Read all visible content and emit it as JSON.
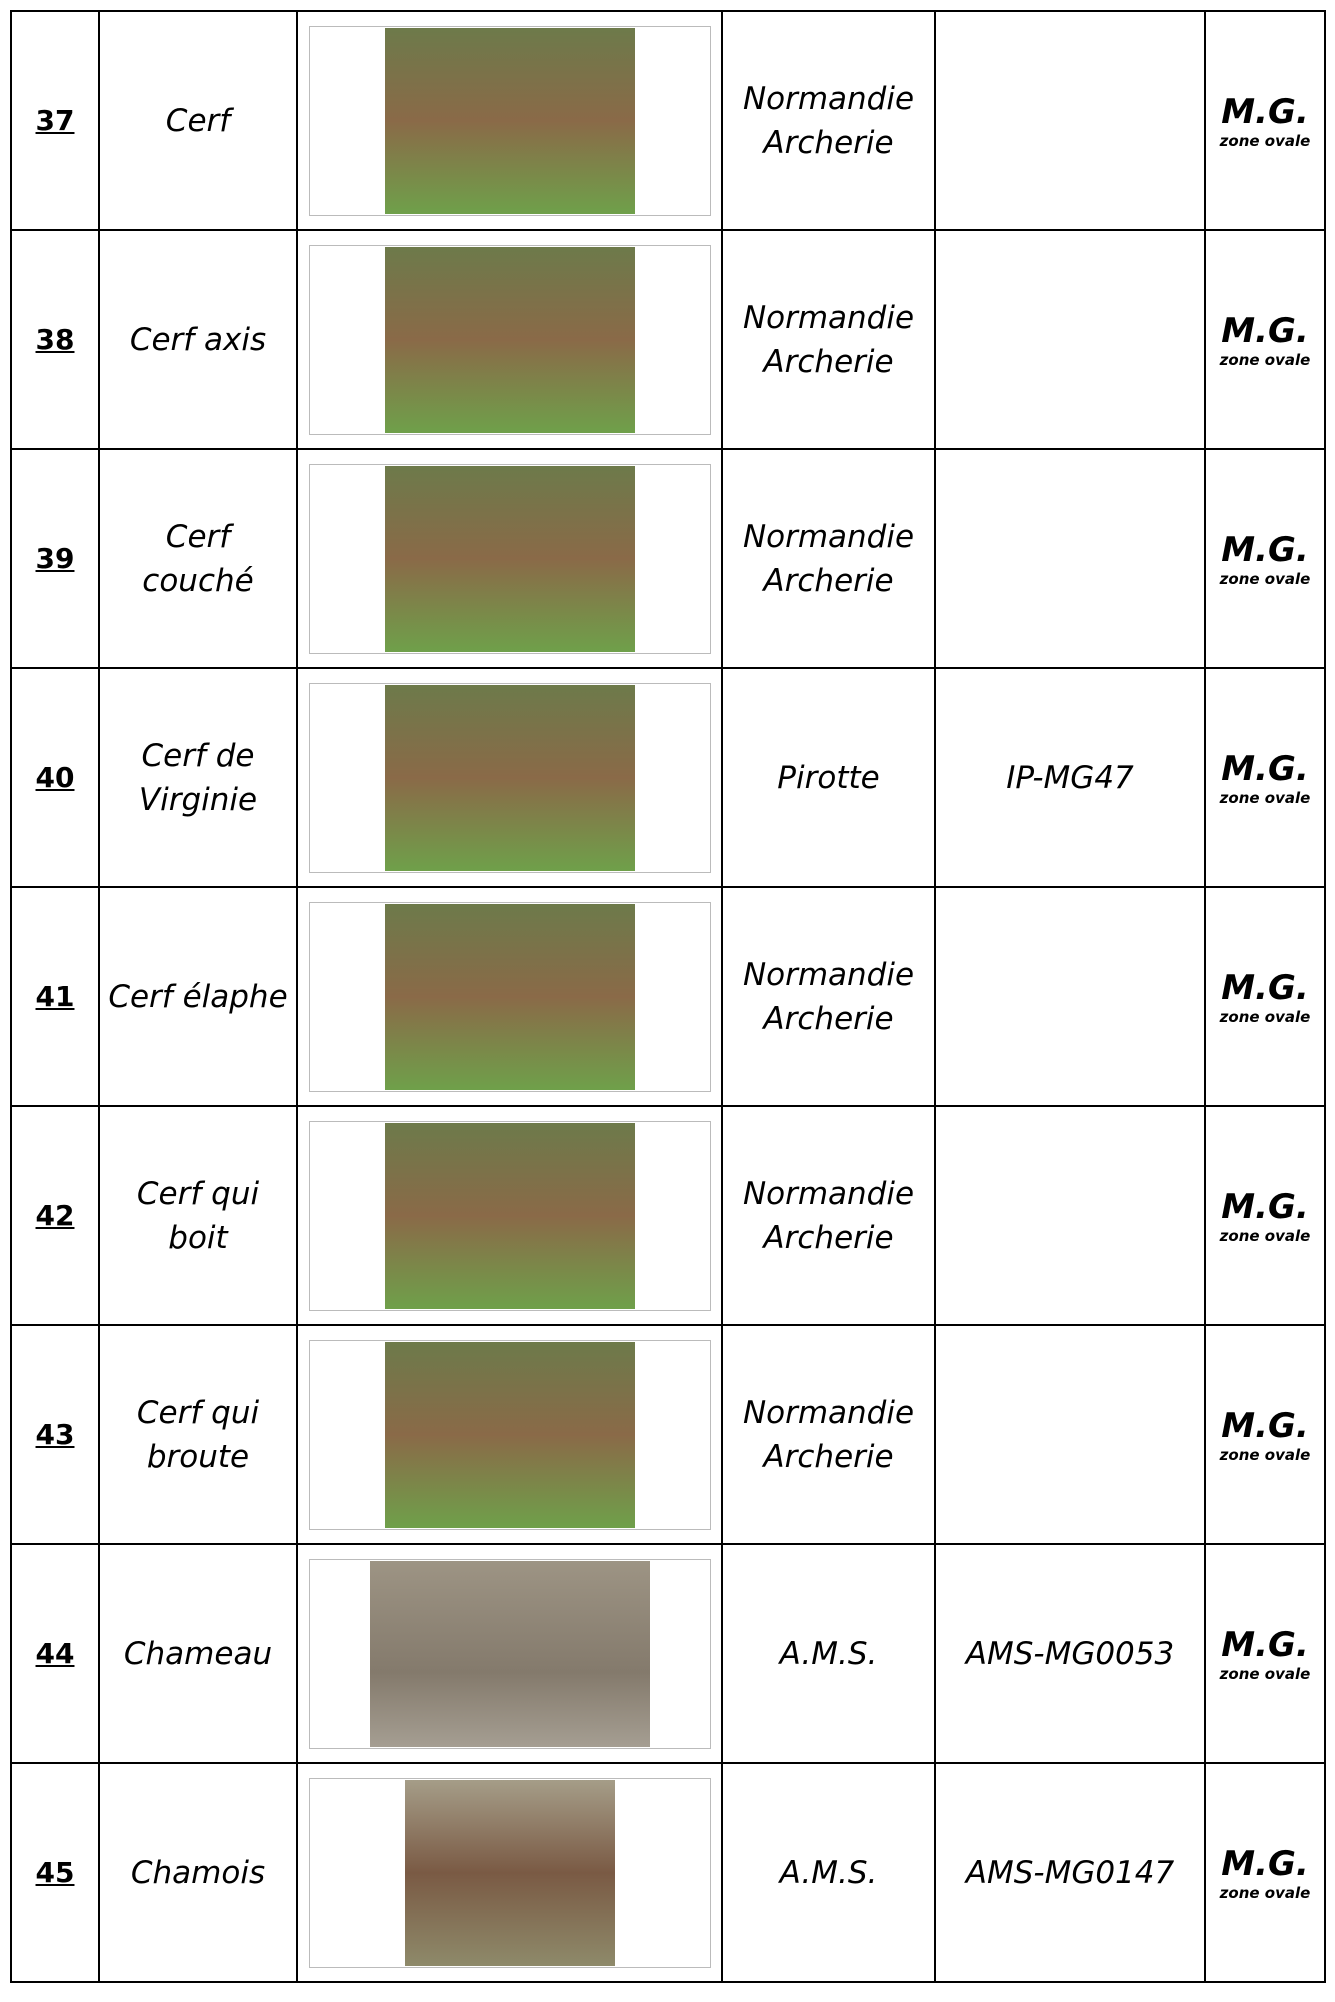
{
  "table": {
    "rows": [
      {
        "number": "37",
        "name": "Cerf",
        "maker": "Normandie Archerie",
        "category": "M.G.",
        "zone": "zone ovale"
      },
      {
        "number": "38",
        "name": "Cerf axis",
        "maker": "Normandie Archerie",
        "category": "M.G.",
        "zone": "zone ovale"
      },
      {
        "number": "39",
        "name": "Cerf couché",
        "maker": "Normandie Archerie",
        "category": "M.G.",
        "zone": "zone ovale"
      },
      {
        "number": "40",
        "name": "Cerf de Virginie",
        "maker": "Pirotte",
        "reference": "IP-MG47",
        "category": "M.G.",
        "zone": "zone ovale"
      },
      {
        "number": "41",
        "name": "Cerf élaphe",
        "maker": "Normandie Archerie",
        "category": "M.G.",
        "zone": "zone ovale"
      },
      {
        "number": "42",
        "name": "Cerf qui boit",
        "maker": "Normandie Archerie",
        "category": "M.G.",
        "zone": "zone ovale"
      },
      {
        "number": "43",
        "name": "Cerf qui broute",
        "maker": "Normandie Archerie",
        "category": "M.G.",
        "zone": "zone ovale"
      },
      {
        "number": "44",
        "name": "Chameau",
        "maker": "A.M.S.",
        "reference": "AMS-MG0053",
        "category": "M.G.",
        "zone": "zone ovale"
      },
      {
        "number": "45",
        "name": "Chamois",
        "maker": "A.M.S.",
        "reference": "AMS-MG0147",
        "category": "M.G.",
        "zone": "zone ovale"
      }
    ]
  }
}
